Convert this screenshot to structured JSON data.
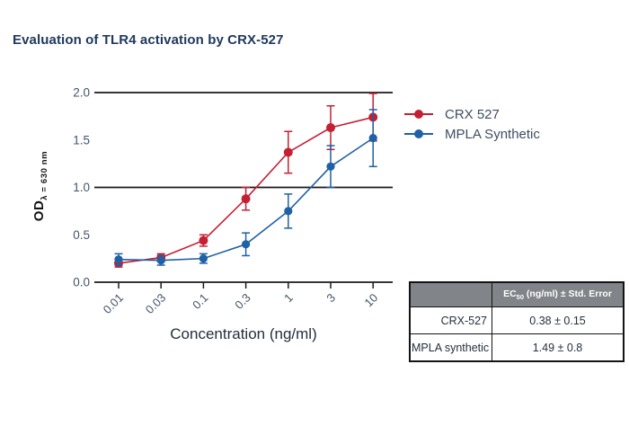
{
  "title": "Evaluation of TLR4 activation by CRX-527",
  "chart_data": {
    "type": "line",
    "x_categories": [
      "0.01",
      "0.03",
      "0.1",
      "0.3",
      "1",
      "3",
      "10"
    ],
    "xlabel": "Concentration (ng/ml)",
    "ylabel": {
      "main": "OD",
      "sub": "λ = 630 nm"
    },
    "ylim": [
      0,
      2
    ],
    "ytick_values": [
      0,
      0.5,
      1,
      1.5,
      2
    ],
    "ytick_labels": [
      "0.0",
      "0.5",
      "1.0",
      "1.5",
      "2.0"
    ],
    "gridline_values": [
      0,
      1,
      2
    ],
    "grid": "horizontal black lines at 0, 1 and 2 only",
    "legend_position": "right of plot, top",
    "x_scale_note": "log-spaced concentrations plotted at equal intervals",
    "series": [
      {
        "name": "CRX 527",
        "color": "#c51f33",
        "values": [
          0.2,
          0.26,
          0.44,
          0.88,
          1.37,
          1.63,
          1.74
        ],
        "errors": [
          0.04,
          0.04,
          0.06,
          0.12,
          0.22,
          0.23,
          0.25
        ]
      },
      {
        "name": "MPLA Synthetic",
        "color": "#1f61a4",
        "values": [
          0.24,
          0.23,
          0.25,
          0.4,
          0.75,
          1.22,
          1.52
        ],
        "errors": [
          0.06,
          0.05,
          0.05,
          0.12,
          0.18,
          0.22,
          0.3
        ]
      }
    ]
  },
  "table": {
    "header": {
      "prefix": "EC",
      "sub": "50",
      "suffix": " (ng/ml) ± Std. Error"
    },
    "rows": [
      {
        "label": "CRX-527",
        "value": "0.38 ± 0.15"
      },
      {
        "label": "MPLA synthetic",
        "value": "1.49 ± 0.8"
      }
    ]
  },
  "colors": {
    "title_text": "#20395e",
    "axis_and_grid": "#1a1a1a",
    "tick_label_text": "#44546a",
    "xlabel_text": "#242e3c",
    "legend_text": "#3d4e62",
    "series_red": "#c51f33",
    "series_blue": "#1f61a4",
    "table_header_bg": "#818489",
    "table_header_text": "#ffffff",
    "table_border": "#141414",
    "table_body_text": "#26303d",
    "background": "#ffffff"
  }
}
